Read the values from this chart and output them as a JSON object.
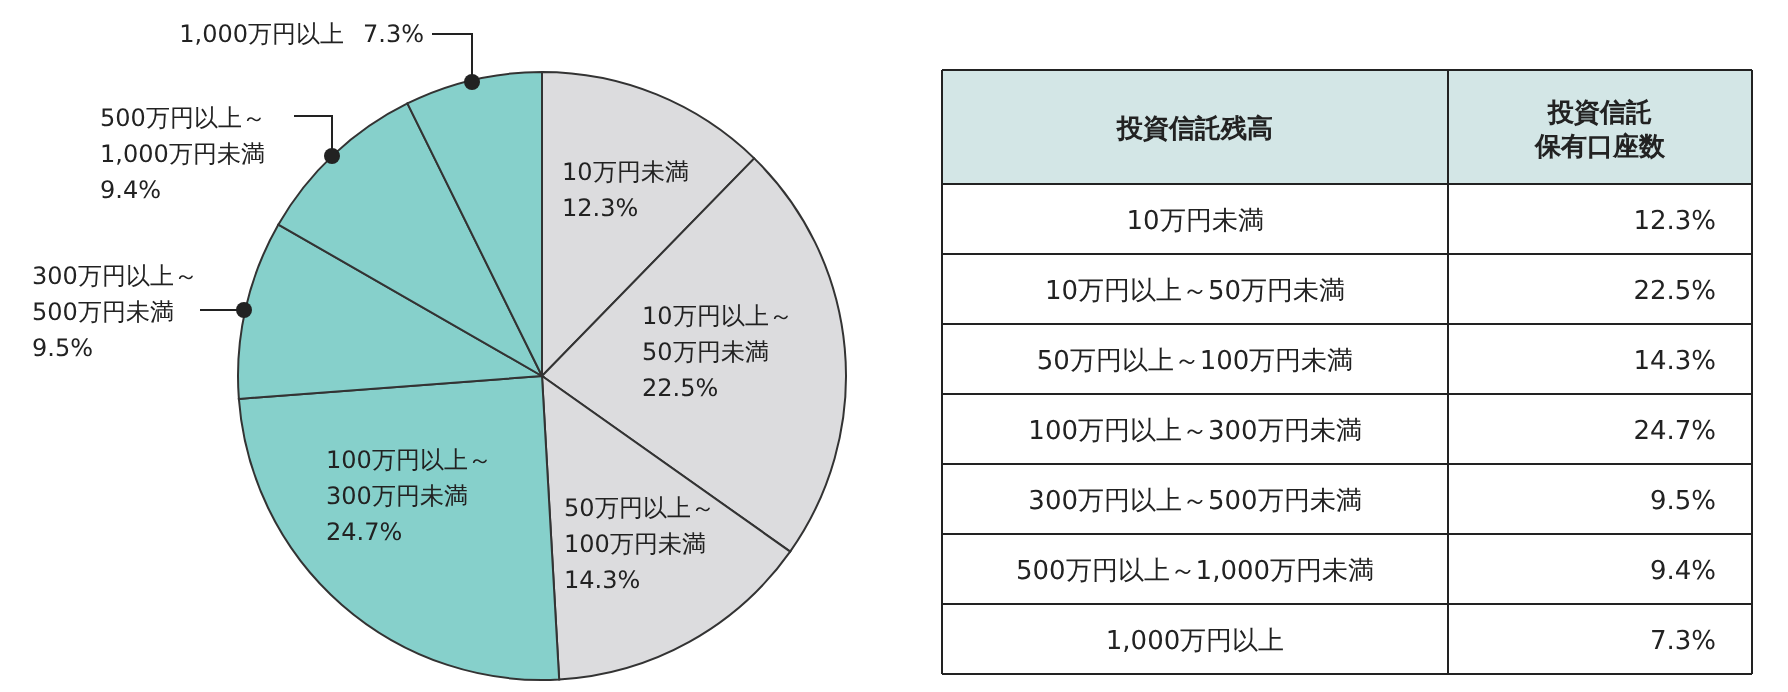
{
  "chart_data": {
    "type": "pie",
    "categories": [
      "10万円未満",
      "10万円以上～50万円未満",
      "50万円以上～100万円未満",
      "100万円以上～300万円未満",
      "300万円以上～500万円未満",
      "500万円以上～1,000万円未満",
      "1,000万円以上"
    ],
    "values": [
      12.3,
      22.5,
      14.3,
      24.7,
      9.5,
      9.4,
      7.3
    ],
    "value_labels": [
      "12.3%",
      "22.5%",
      "14.3%",
      "24.7%",
      "9.5%",
      "9.4%",
      "7.3%"
    ],
    "colors": [
      "#dcdcde",
      "#dcdcde",
      "#dcdcde",
      "#86d0cb",
      "#86d0cb",
      "#86d0cb",
      "#86d0cb"
    ],
    "annotations": [
      "投資信託残高",
      "投資信託保有口座数"
    ]
  }
}
